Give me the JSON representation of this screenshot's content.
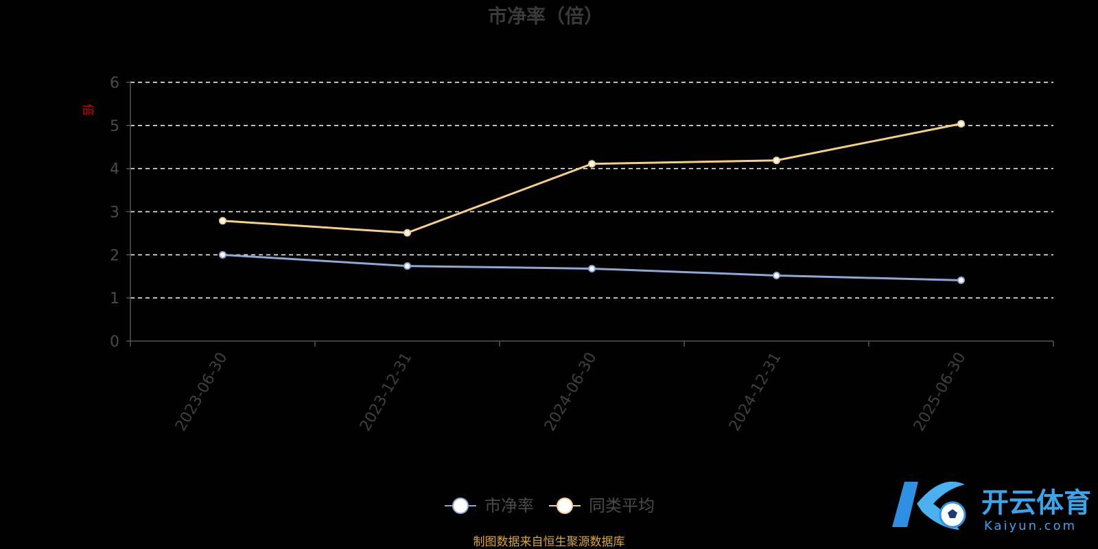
{
  "chart_data": {
    "type": "line",
    "title": "市净率（倍）",
    "ylabel": "倍",
    "xlabel": "",
    "ylim": [
      0,
      6
    ],
    "yticks": [
      0,
      1,
      2,
      3,
      4,
      5,
      6
    ],
    "grid": true,
    "legend_position": "bottom",
    "categories": [
      "2023-06-30",
      "2023-12-31",
      "2024-06-30",
      "2024-12-31",
      "2025-06-30"
    ],
    "series": [
      {
        "name": "市净率",
        "color": "#8fa8d6",
        "values": [
          2.0,
          1.74,
          1.68,
          1.52,
          1.41
        ]
      },
      {
        "name": "同类平均",
        "color": "#f7cf8a",
        "values": [
          2.79,
          2.51,
          4.11,
          4.19,
          5.04
        ]
      }
    ]
  },
  "source_note": "制图数据来自恒生聚源数据库",
  "watermark": {
    "brand_cn": "开云体育",
    "brand_en": "Kaiyun.com"
  }
}
